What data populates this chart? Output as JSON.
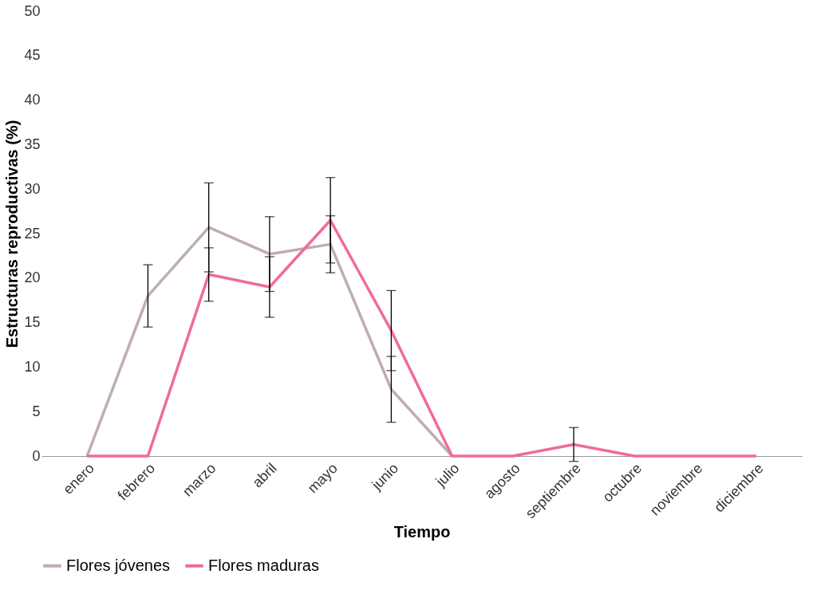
{
  "chart_data": {
    "type": "line",
    "xlabel": "Tiempo",
    "ylabel": "Estructuras reproductivas (%)",
    "categories": [
      "enero",
      "febrero",
      "marzo",
      "abril",
      "mayo",
      "junio",
      "julio",
      "agosto",
      "septiembre",
      "octubre",
      "noviembre",
      "diciembre"
    ],
    "series": [
      {
        "name": "Flores jóvenes",
        "color": "#bfadb3",
        "values": [
          0,
          18,
          25.7,
          22.7,
          23.8,
          7.5,
          0,
          null,
          null,
          null,
          null,
          null
        ],
        "errors": [
          null,
          3.5,
          5,
          4.2,
          3.2,
          3.7,
          null,
          null,
          null,
          null,
          null,
          null
        ]
      },
      {
        "name": "Flores maduras",
        "color": "#f06b96",
        "values": [
          0,
          0,
          20.4,
          19,
          26.5,
          14.1,
          0,
          0,
          1.3,
          0,
          0,
          0
        ],
        "errors": [
          null,
          null,
          3,
          3.4,
          4.8,
          4.5,
          null,
          null,
          1.9,
          null,
          null,
          null
        ]
      }
    ],
    "ylim": [
      0,
      50
    ],
    "yticks": [
      0,
      5,
      10,
      15,
      20,
      25,
      30,
      35,
      40,
      45,
      50
    ],
    "grid": false,
    "legend": "bottom",
    "marker": "none",
    "line_style": "solid"
  }
}
